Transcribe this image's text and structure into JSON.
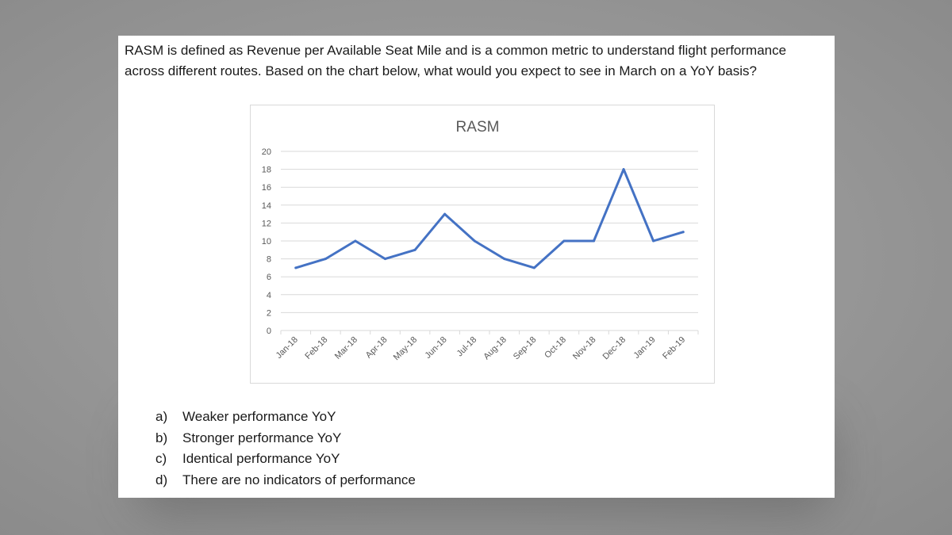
{
  "question": {
    "line1": "RASM is defined as Revenue per Available Seat Mile and is a common metric to understand flight performance",
    "line2": "across different routes. Based on the chart below, what would you expect to see in March on a YoY basis?"
  },
  "options": [
    {
      "letter": "a)",
      "text": "Weaker performance YoY"
    },
    {
      "letter": "b)",
      "text": "Stronger performance YoY"
    },
    {
      "letter": "c)",
      "text": "Identical performance YoY"
    },
    {
      "letter": "d)",
      "text": "There are no indicators of performance"
    }
  ],
  "colors": {
    "line": "#4472c4",
    "grid": "#d9d9d9",
    "text": "#595959"
  },
  "chart_data": {
    "type": "line",
    "title": "RASM",
    "xlabel": "",
    "ylabel": "",
    "categories": [
      "Jan-18",
      "Feb-18",
      "Mar-18",
      "Apr-18",
      "May-18",
      "Jun-18",
      "Jul-18",
      "Aug-18",
      "Sep-18",
      "Oct-18",
      "Nov-18",
      "Dec-18",
      "Jan-19",
      "Feb-19"
    ],
    "series": [
      {
        "values": [
          7,
          8,
          10,
          8,
          9,
          13,
          10,
          8,
          7,
          10,
          10,
          18,
          10,
          11
        ]
      }
    ],
    "ylim": [
      0,
      20
    ],
    "yticks": [
      0,
      2,
      4,
      6,
      8,
      10,
      12,
      14,
      16,
      18,
      20
    ],
    "grid": true,
    "legend": "none"
  }
}
